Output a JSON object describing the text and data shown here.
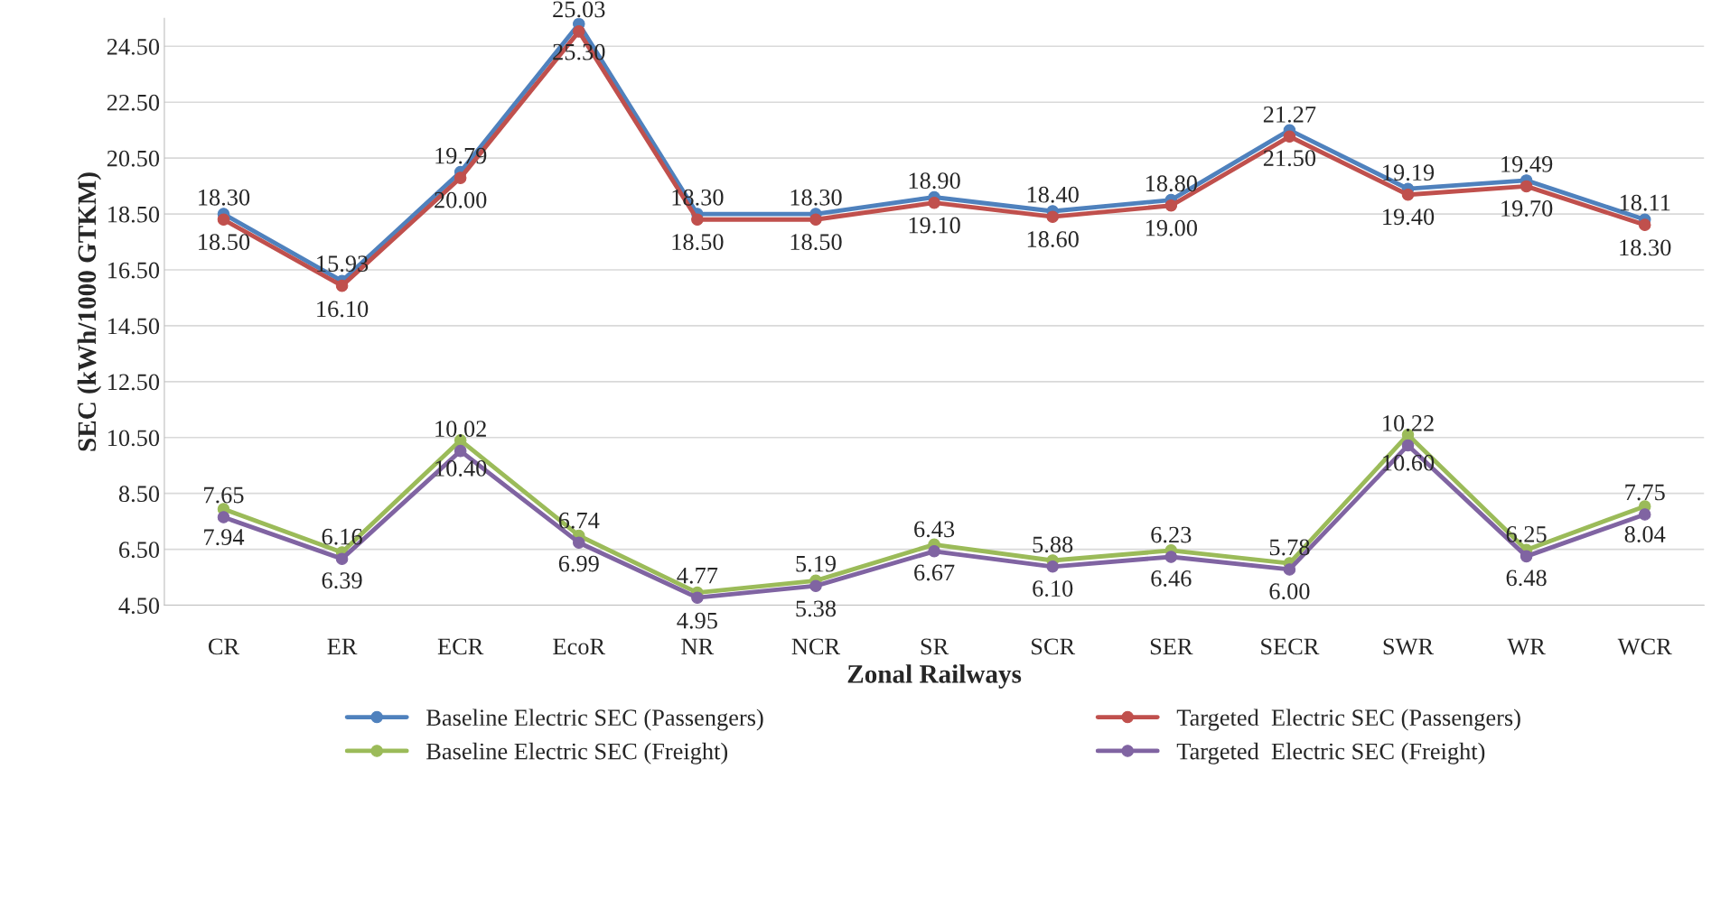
{
  "chart_data": {
    "type": "line",
    "xlabel": "Zonal Railways",
    "ylabel": "SEC (kWh/1000 GTKM)",
    "categories": [
      "CR",
      "ER",
      "ECR",
      "EcoR",
      "NR",
      "NCR",
      "SR",
      "SCR",
      "SER",
      "SECR",
      "SWR",
      "WR",
      "WCR"
    ],
    "series": [
      {
        "name": "Baseline Electric SEC (Passengers)",
        "color": "#4f81bd",
        "values": [
          18.5,
          16.1,
          20.0,
          25.3,
          18.5,
          18.5,
          19.1,
          18.6,
          19.0,
          21.5,
          19.4,
          19.7,
          18.3
        ],
        "value_labels": [
          "18.50",
          "16.10",
          "20.00",
          "25.30",
          "18.50",
          "18.50",
          "19.10",
          "18.60",
          "19.00",
          "21.50",
          "19.40",
          "19.70",
          "18.30"
        ]
      },
      {
        "name": "Targeted  Electric SEC (Passengers)",
        "color": "#c0504d",
        "values": [
          18.3,
          15.93,
          19.79,
          25.03,
          18.3,
          18.3,
          18.9,
          18.4,
          18.8,
          21.27,
          19.19,
          19.49,
          18.11
        ],
        "value_labels": [
          "18.30",
          "15.93",
          "19.79",
          "25.03",
          "18.30",
          "18.30",
          "18.90",
          "18.40",
          "18.80",
          "21.27",
          "19.19",
          "19.49",
          "18.11"
        ]
      },
      {
        "name": "Baseline Electric SEC (Freight)",
        "color": "#9bbb59",
        "values": [
          7.94,
          6.39,
          10.4,
          6.99,
          4.95,
          5.38,
          6.67,
          6.1,
          6.46,
          6.0,
          10.6,
          6.48,
          8.04
        ],
        "value_labels": [
          "7.94",
          "6.39",
          "10.40",
          "6.99",
          "4.95",
          "5.38",
          "6.67",
          "6.10",
          "6.46",
          "6.00",
          "10.60",
          "6.48",
          "8.04"
        ]
      },
      {
        "name": "Targeted  Electric SEC (Freight)",
        "color": "#8064a2",
        "values": [
          7.65,
          6.16,
          10.02,
          6.74,
          4.77,
          5.19,
          6.43,
          5.88,
          6.23,
          5.78,
          10.22,
          6.25,
          7.75
        ],
        "value_labels": [
          "7.65",
          "6.16",
          "10.02",
          "6.74",
          "4.77",
          "5.19",
          "6.43",
          "5.88",
          "6.23",
          "5.78",
          "10.22",
          "6.25",
          "7.75"
        ]
      }
    ],
    "ylim": [
      4.5,
      25.5
    ],
    "yticks": [
      {
        "value": 4.5,
        "label": "4.50"
      },
      {
        "value": 6.5,
        "label": "6.50"
      },
      {
        "value": 8.5,
        "label": "8.50"
      },
      {
        "value": 10.5,
        "label": "10.50"
      },
      {
        "value": 12.5,
        "label": "12.50"
      },
      {
        "value": 14.5,
        "label": "14.50"
      },
      {
        "value": 16.5,
        "label": "16.50"
      },
      {
        "value": 18.5,
        "label": "18.50"
      },
      {
        "value": 20.5,
        "label": "20.50"
      },
      {
        "value": 22.5,
        "label": "22.50"
      },
      {
        "value": 24.5,
        "label": "24.50"
      }
    ],
    "grid": "y",
    "legend": "bottom",
    "marker": "circle",
    "line_style": "solid"
  }
}
